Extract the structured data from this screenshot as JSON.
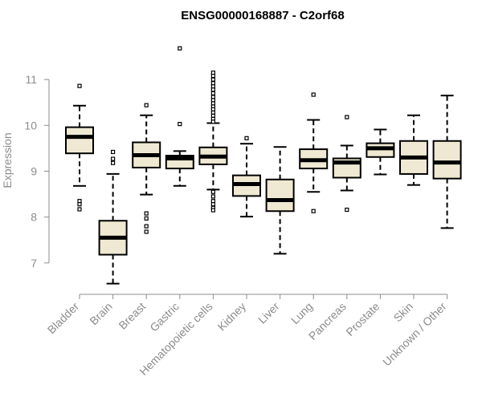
{
  "chart_data": {
    "type": "box",
    "title": "ENSG00000168887 - C2orf68",
    "xlabel": "",
    "ylabel": "Expression",
    "ylim": [
      6.35,
      12.0
    ],
    "yticks": [
      7,
      8,
      9,
      10,
      11
    ],
    "box_fill": "#efe9d3",
    "categories": [
      "Bladder",
      "Brain",
      "Breast",
      "Gastric",
      "Hematopoietic cells",
      "Kidney",
      "Liver",
      "Lung",
      "Pancreas",
      "Prostate",
      "Skin",
      "Unknown / Other"
    ],
    "boxes": [
      {
        "min": 8.68,
        "q1": 9.39,
        "median": 9.75,
        "q3": 9.96,
        "max": 10.43,
        "outliers": [
          10.86,
          8.35,
          8.28,
          8.17
        ]
      },
      {
        "min": 6.55,
        "q1": 7.18,
        "median": 7.55,
        "q3": 7.92,
        "max": 8.94,
        "outliers": [
          9.42,
          9.27,
          9.18
        ]
      },
      {
        "min": 8.49,
        "q1": 9.08,
        "median": 9.35,
        "q3": 9.63,
        "max": 10.22,
        "outliers": [
          10.44,
          8.08,
          7.97,
          7.8,
          7.68
        ]
      },
      {
        "min": 8.68,
        "q1": 9.06,
        "median": 9.28,
        "q3": 9.34,
        "max": 9.44,
        "outliers": [
          11.68,
          10.03
        ]
      },
      {
        "min": 8.6,
        "q1": 9.15,
        "median": 9.32,
        "q3": 9.52,
        "max": 10.05,
        "outliers": [
          11.15,
          11.08,
          11.0,
          10.92,
          10.85,
          10.78,
          10.7,
          10.62,
          10.55,
          10.48,
          10.41,
          10.35,
          10.28,
          10.21,
          10.14,
          10.08,
          8.55,
          8.45,
          8.35,
          8.28,
          8.2,
          8.15
        ]
      },
      {
        "min": 8.01,
        "q1": 8.46,
        "median": 8.72,
        "q3": 8.91,
        "max": 9.6,
        "outliers": [
          9.72
        ]
      },
      {
        "min": 7.2,
        "q1": 8.13,
        "median": 8.37,
        "q3": 8.82,
        "max": 9.53,
        "outliers": []
      },
      {
        "min": 8.55,
        "q1": 9.06,
        "median": 9.24,
        "q3": 9.48,
        "max": 10.12,
        "outliers": [
          10.67,
          8.13
        ]
      },
      {
        "min": 8.58,
        "q1": 8.86,
        "median": 9.19,
        "q3": 9.28,
        "max": 9.56,
        "outliers": [
          10.18,
          8.16
        ]
      },
      {
        "min": 8.93,
        "q1": 9.31,
        "median": 9.5,
        "q3": 9.61,
        "max": 9.91,
        "outliers": []
      },
      {
        "min": 8.7,
        "q1": 8.94,
        "median": 9.3,
        "q3": 9.66,
        "max": 10.22,
        "outliers": []
      },
      {
        "min": 7.76,
        "q1": 8.84,
        "median": 9.19,
        "q3": 9.66,
        "max": 10.65,
        "outliers": []
      }
    ]
  }
}
